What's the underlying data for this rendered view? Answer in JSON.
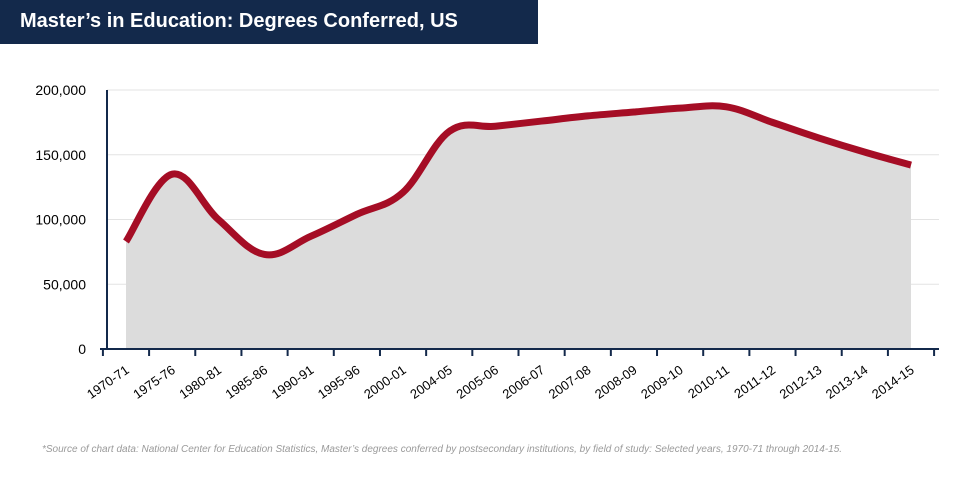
{
  "header": {
    "title": "Master’s in Education: Degrees Conferred, US"
  },
  "chart_data": {
    "type": "area",
    "title": "Master’s in Education: Degrees Conferred, US",
    "xlabel": "",
    "ylabel": "",
    "categories": [
      "1970-71",
      "1975-76",
      "1980-81",
      "1985-86",
      "1990-91",
      "1995-96",
      "2000-01",
      "2004-05",
      "2005-06",
      "2006-07",
      "2007-08",
      "2008-09",
      "2009-10",
      "2010-11",
      "2011-12",
      "2012-13",
      "2013-14",
      "2014-15"
    ],
    "series": [
      {
        "values": [
          83000,
          135000,
          100000,
          73000,
          87000,
          104000,
          121000,
          168000,
          172000,
          176000,
          180000,
          183000,
          186000,
          187000,
          175000,
          163000,
          152000,
          142000
        ]
      }
    ],
    "ylim": [
      0,
      200000
    ],
    "yticks": [
      0,
      50000,
      100000,
      150000,
      200000
    ],
    "ytick_labels": [
      "0",
      "50,000",
      "100,000",
      "150,000",
      "200,000"
    ],
    "grid": true,
    "colors": {
      "line": "#a50d25",
      "fill": "#dcdcdc",
      "title_bg": "#13294b",
      "axis": "#13294b"
    }
  },
  "footnote": "*Source of chart data: National Center for Education Statistics, Master’s degrees conferred by postsecondary institutions, by field of study: Selected years, 1970-71 through 2014-15."
}
